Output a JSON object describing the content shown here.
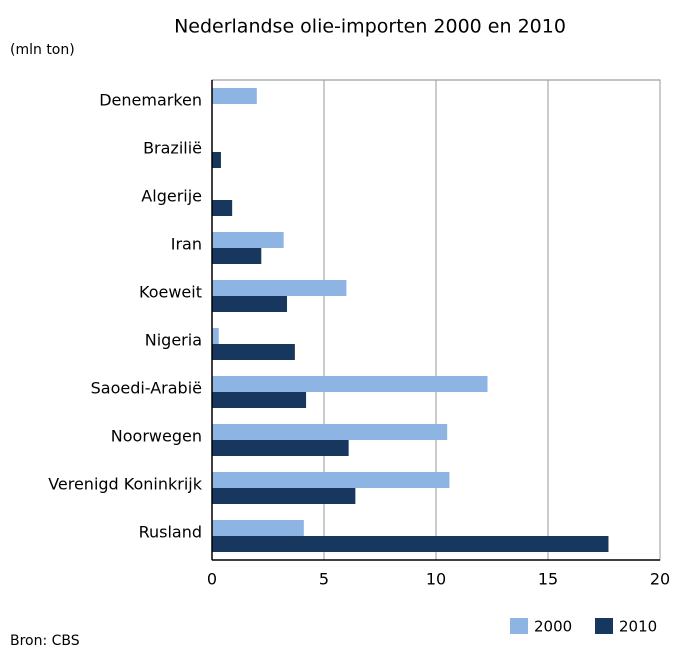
{
  "chart_data": {
    "type": "barh",
    "title": "Nederlandse olie-importen 2000 en 2010",
    "y_label": "(mln ton)",
    "source": "Bron: CBS",
    "categories": [
      "Denemarken",
      "Brazilië",
      "Algerije",
      "Iran",
      "Koeweit",
      "Nigeria",
      "Saoedi-Arabië",
      "Noorwegen",
      "Verenigd Koninkrijk",
      "Rusland"
    ],
    "series": [
      {
        "name": "2000",
        "color": "#8eb4e3",
        "values": [
          2.0,
          0,
          0,
          3.2,
          6.0,
          0.3,
          12.3,
          10.5,
          10.6,
          4.1
        ]
      },
      {
        "name": "2010",
        "color": "#17375e",
        "values": [
          0,
          0.4,
          0.9,
          2.2,
          3.35,
          3.7,
          4.2,
          6.1,
          6.4,
          17.7
        ]
      }
    ],
    "xlim": [
      0,
      20
    ],
    "xticks": [
      0,
      5,
      10,
      15,
      20
    ],
    "grid": true,
    "legend": "bottom-right"
  }
}
